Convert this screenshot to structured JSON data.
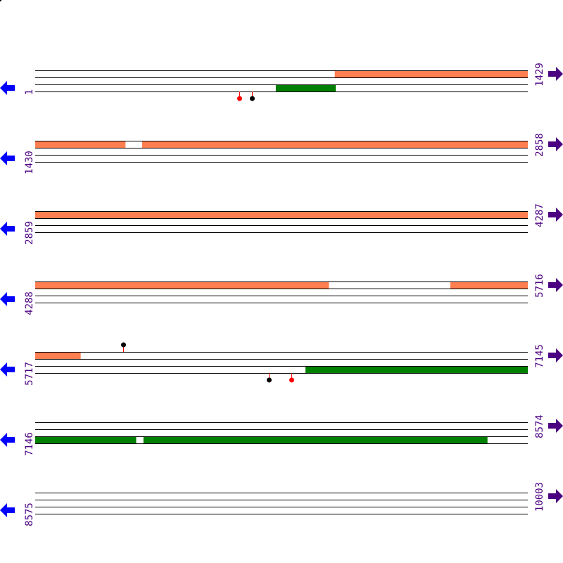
{
  "colors": {
    "orange_feature": "#ff7f50",
    "green_feature": "#008000",
    "track_line": "#000000",
    "label": "#4b0082",
    "left_arrow": "#0000ff",
    "right_arrow": "#4b0082",
    "marker_red": "#ff0000",
    "marker_black": "#000000",
    "marker_stem": "#ff0000"
  },
  "icons": {
    "left": "arrow-left-icon",
    "right": "arrow-right-icon"
  },
  "rows": [
    {
      "start_label": "1",
      "end_label": "1429",
      "start": 1,
      "end": 1429,
      "features": [
        {
          "track": 0,
          "from": 870,
          "to": 1429,
          "color": "orange"
        },
        {
          "track": 2,
          "from": 699,
          "to": 872,
          "color": "green"
        }
      ],
      "markers": [
        {
          "pos": 592,
          "side": "below",
          "color": "red"
        },
        {
          "pos": 629,
          "side": "below",
          "color": "black"
        }
      ]
    },
    {
      "start_label": "1430",
      "end_label": "2858",
      "start": 1430,
      "end": 2858,
      "features": [
        {
          "track": 0,
          "from": 1430,
          "to": 1691,
          "color": "orange"
        },
        {
          "track": 0,
          "from": 1740,
          "to": 2858,
          "color": "orange"
        }
      ],
      "markers": []
    },
    {
      "start_label": "2859",
      "end_label": "4287",
      "start": 2859,
      "end": 4287,
      "features": [
        {
          "track": 0,
          "from": 2859,
          "to": 4287,
          "color": "orange"
        }
      ],
      "markers": []
    },
    {
      "start_label": "4288",
      "end_label": "5716",
      "start": 4288,
      "end": 5716,
      "features": [
        {
          "track": 0,
          "from": 4288,
          "to": 5139,
          "color": "orange"
        },
        {
          "track": 0,
          "from": 5492,
          "to": 5716,
          "color": "orange"
        }
      ],
      "markers": []
    },
    {
      "start_label": "5717",
      "end_label": "7145",
      "start": 5717,
      "end": 7145,
      "features": [
        {
          "track": 0,
          "from": 5717,
          "to": 5848,
          "color": "orange"
        },
        {
          "track": 2,
          "from": 6501,
          "to": 7145,
          "color": "green"
        }
      ],
      "markers": [
        {
          "pos": 5972,
          "side": "above",
          "color": "black"
        },
        {
          "pos": 6395,
          "side": "below",
          "color": "black"
        },
        {
          "pos": 6460,
          "side": "below",
          "color": "red"
        }
      ]
    },
    {
      "start_label": "7146",
      "end_label": "8574",
      "start": 7146,
      "end": 8574,
      "features": [
        {
          "track": 2,
          "from": 7146,
          "to": 7438,
          "color": "green"
        },
        {
          "track": 2,
          "from": 7460,
          "to": 8457,
          "color": "green"
        }
      ],
      "markers": []
    },
    {
      "start_label": "8575",
      "end_label": "10003",
      "start": 8575,
      "end": 10003,
      "features": [],
      "markers": []
    }
  ]
}
